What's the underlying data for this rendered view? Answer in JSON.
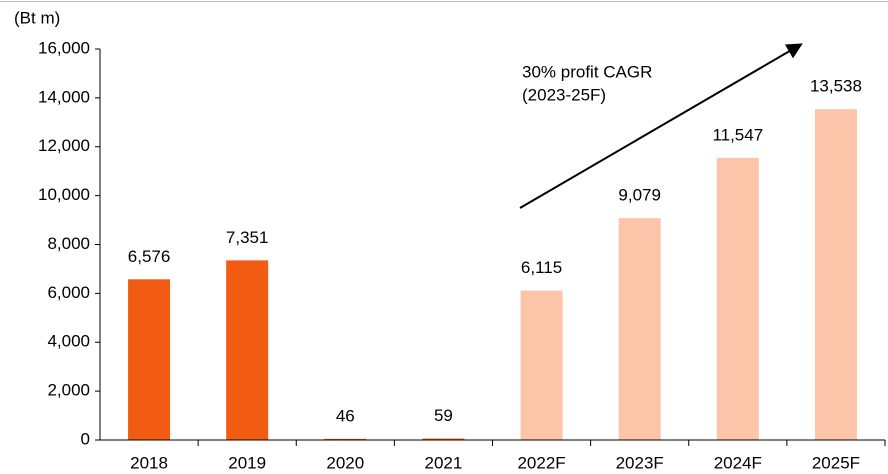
{
  "chart_data": {
    "type": "bar",
    "y_axis_label": "(Bt m)",
    "categories": [
      "2018",
      "2019",
      "2020",
      "2021",
      "2022F",
      "2023F",
      "2024F",
      "2025F"
    ],
    "values": [
      6576,
      7351,
      46,
      59,
      6115,
      9079,
      11547,
      13538
    ],
    "value_labels": [
      "6,576",
      "7,351",
      "46",
      "59",
      "6,115",
      "9,079",
      "11,547",
      "13,538"
    ],
    "colors": [
      "#f25c12",
      "#f25c12",
      "#f25c12",
      "#f25c12",
      "#fcc5a9",
      "#fcc5a9",
      "#fcc5a9",
      "#fcc5a9"
    ],
    "annotation": [
      "30% profit CAGR",
      "(2023-25F)"
    ],
    "ylim": [
      0,
      16000
    ],
    "yticks": [
      0,
      {
        "value": 2000,
        "label": "2,000"
      },
      {
        "value": 4000,
        "label": "4,000"
      },
      {
        "value": 6000,
        "label": "6,000"
      },
      {
        "value": 8000,
        "label": "8,000"
      },
      {
        "value": 10000,
        "label": "10,000"
      },
      {
        "value": 12000,
        "label": "12,000"
      },
      {
        "value": 14000,
        "label": "14,000"
      },
      {
        "value": 16000,
        "label": "16,000"
      }
    ],
    "grid": false
  }
}
